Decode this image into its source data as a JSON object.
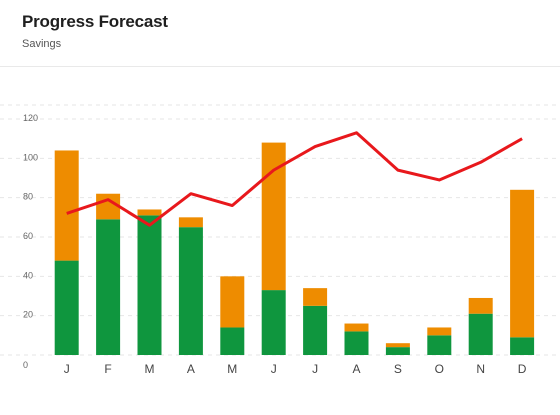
{
  "header": {
    "title": "Progress Forecast",
    "subtitle": "Savings"
  },
  "chart_data": {
    "type": "bar",
    "stacked": true,
    "categories": [
      "J",
      "F",
      "M",
      "A",
      "M",
      "J",
      "J",
      "A",
      "S",
      "O",
      "N",
      "D"
    ],
    "series": [
      {
        "name": "",
        "color": "#0f963e",
        "values": [
          48,
          69,
          71,
          65,
          14,
          33,
          25,
          12,
          4,
          10,
          21,
          9
        ]
      },
      {
        "name": "",
        "color": "#ee8c00",
        "values": [
          56,
          13,
          3,
          5,
          26,
          75,
          9,
          4,
          2,
          4,
          8,
          75
        ]
      }
    ],
    "line": {
      "name": "",
      "color": "#e8181c",
      "values": [
        72,
        79,
        66,
        82,
        76,
        94,
        106,
        113,
        94,
        89,
        98,
        110
      ]
    },
    "yticks": [
      0,
      20,
      40,
      60,
      80,
      100,
      120
    ],
    "ylim": [
      0,
      120
    ],
    "grid": true,
    "title": "Progress Forecast",
    "subtitle": "Savings",
    "xlabel": "",
    "ylabel": ""
  }
}
